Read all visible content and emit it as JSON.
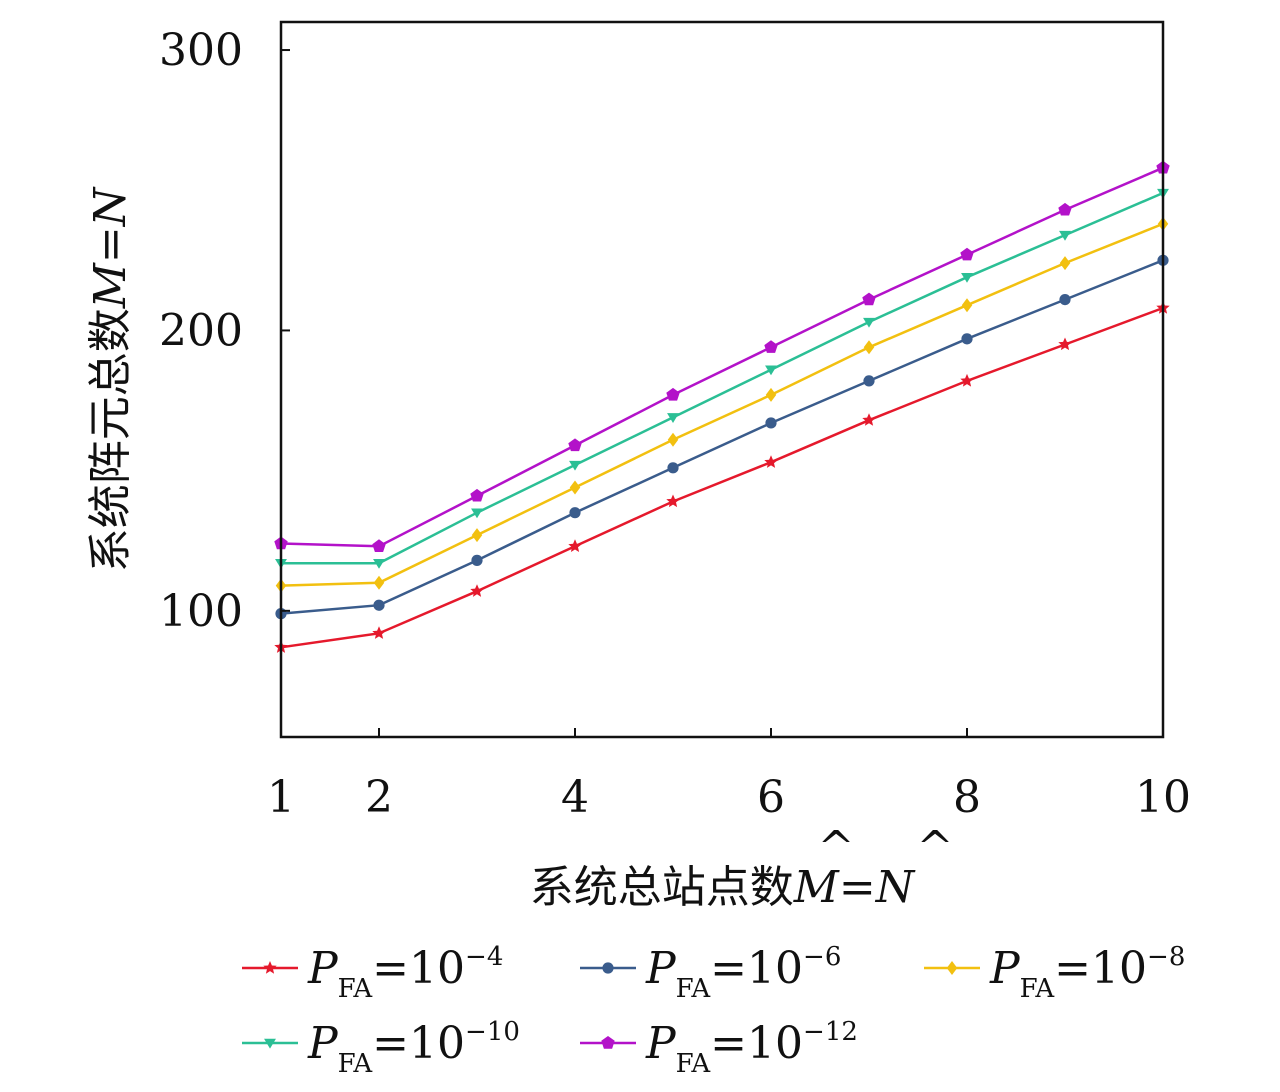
{
  "chart_data": {
    "type": "line",
    "xlabel": {
      "prefix": "系统总站点数",
      "var1": "M",
      "eq": "=",
      "var2": "N",
      "hat": "^"
    },
    "ylabel": {
      "prefix": "系统阵元总数",
      "var1": "M",
      "eq": "=",
      "var2": "N"
    },
    "xlim": [
      1,
      10
    ],
    "ylim": [
      55,
      310
    ],
    "x_ticks": [
      1,
      2,
      4,
      6,
      8,
      10
    ],
    "x_tick_labels": [
      "1",
      "2",
      "4",
      "6",
      "8",
      "10"
    ],
    "y_ticks": [
      100,
      200,
      300
    ],
    "y_tick_labels": [
      "100",
      "200",
      "300"
    ],
    "x": [
      1,
      2,
      3,
      4,
      5,
      6,
      7,
      8,
      9,
      10
    ],
    "legend_placement": "bottom",
    "grid": false,
    "series": [
      {
        "name_P": "P",
        "name_sub": "FA",
        "name_eq": "=10",
        "name_exp": "−4",
        "color": "#e5192c",
        "marker": "star",
        "values": [
          87,
          92,
          107,
          123,
          139,
          153,
          168,
          182,
          195,
          208
        ]
      },
      {
        "name_P": "P",
        "name_sub": "FA",
        "name_eq": "=10",
        "name_exp": "−6",
        "color": "#3a5c8c",
        "marker": "circle",
        "values": [
          99,
          102,
          118,
          135,
          151,
          167,
          182,
          197,
          211,
          225
        ]
      },
      {
        "name_P": "P",
        "name_sub": "FA",
        "name_eq": "=10",
        "name_exp": "−8",
        "color": "#f2c010",
        "marker": "diamond",
        "values": [
          109,
          110,
          127,
          144,
          161,
          177,
          194,
          209,
          224,
          238
        ]
      },
      {
        "name_P": "P",
        "name_sub": "FA",
        "name_eq": "=10",
        "name_exp": "−10",
        "color": "#2bbf95",
        "marker": "triangle-down",
        "values": [
          117,
          117,
          135,
          152,
          169,
          186,
          203,
          219,
          234,
          249
        ]
      },
      {
        "name_P": "P",
        "name_sub": "FA",
        "name_eq": "=10",
        "name_exp": "−12",
        "color": "#b312c9",
        "marker": "pentagon",
        "values": [
          124,
          123,
          141,
          159,
          177,
          194,
          211,
          227,
          243,
          258
        ]
      }
    ]
  }
}
